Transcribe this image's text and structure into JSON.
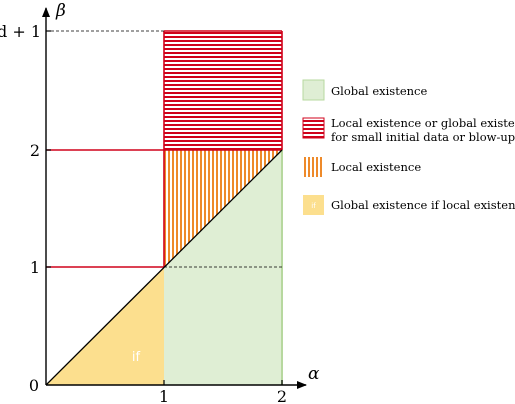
{
  "axes": {
    "x_label": "α",
    "y_label": "β",
    "x_ticks": [
      "0",
      "1",
      "2"
    ],
    "y_ticks": [
      "1",
      "2",
      "d + 1"
    ]
  },
  "regions": {
    "if_label": "if"
  },
  "legend": {
    "items": [
      {
        "label": "Global existence",
        "color": "#dfeed4"
      },
      {
        "label_line1": "Local existence or global existence",
        "label_line2": "for small initial data or blow-up",
        "color": "#d0021b"
      },
      {
        "label": "Local existence",
        "color": "#ee8a2a"
      },
      {
        "label": "Global existence if local existence",
        "mini": "if",
        "color": "#fcdf8e"
      }
    ]
  },
  "colors": {
    "green_fill": "#dfeed4",
    "green_border": "#b7d89f",
    "red": "#d0021b",
    "orange": "#ee8a2a",
    "yellow": "#fcdf8e"
  }
}
